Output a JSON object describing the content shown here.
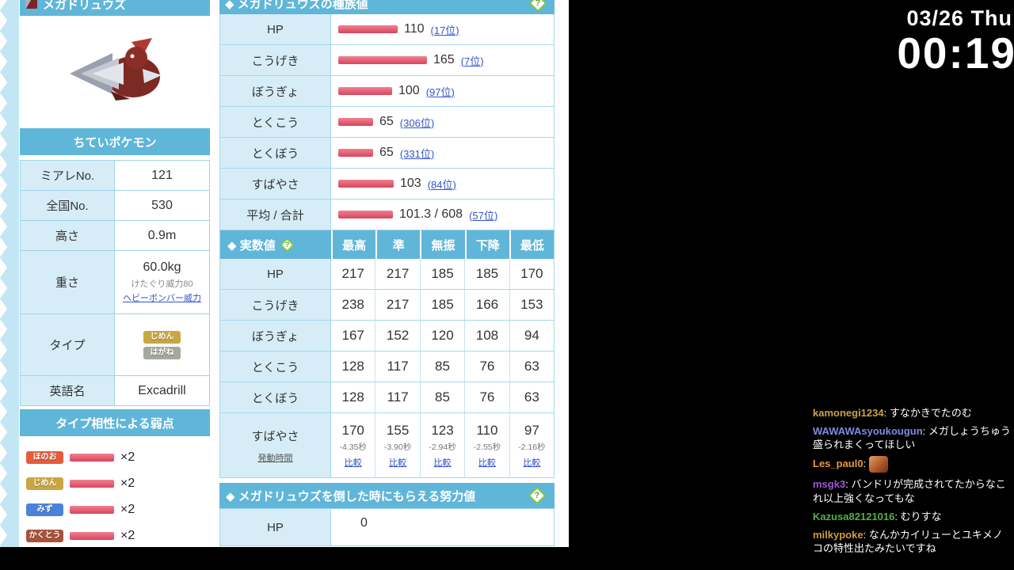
{
  "left": {
    "name": "メガドリュウズ",
    "category": "ちていポケモン",
    "info": [
      {
        "label": "ミアレNo.",
        "value": "121"
      },
      {
        "label": "全国No.",
        "value": "530"
      },
      {
        "label": "高さ",
        "value": "0.9m"
      },
      {
        "label": "重さ",
        "value": "60.0kg",
        "note": "けたぐり威力80",
        "note_link": "ヘビーボンバー威力"
      },
      {
        "label": "タイプ",
        "badges": [
          {
            "label": "じめん",
            "color": "#c9a641"
          },
          {
            "label": "はがね",
            "color": "#a3a99c"
          }
        ]
      },
      {
        "label": "英語名",
        "value": "Excadrill"
      }
    ],
    "weakness_title": "タイプ相性による弱点",
    "weaknesses": [
      {
        "type": "ほのお",
        "color": "#e45c3a",
        "mult": "×2"
      },
      {
        "type": "じめん",
        "color": "#c9a641",
        "mult": "×2"
      },
      {
        "type": "みず",
        "color": "#4a82d9",
        "mult": "×2"
      },
      {
        "type": "かくとう",
        "color": "#a8523a",
        "mult": "×2"
      }
    ]
  },
  "stats": {
    "title": "◆ メガドリュウズの種族値",
    "rows": [
      {
        "label": "HP",
        "value": "110",
        "rank": "(17位)",
        "bar": 110
      },
      {
        "label": "こうげき",
        "value": "165",
        "rank": "(7位)",
        "bar": 165
      },
      {
        "label": "ぼうぎょ",
        "value": "100",
        "rank": "(97位)",
        "bar": 100
      },
      {
        "label": "とくこう",
        "value": "65",
        "rank": "(306位)",
        "bar": 65
      },
      {
        "label": "とくぼう",
        "value": "65",
        "rank": "(331位)",
        "bar": 65
      },
      {
        "label": "すばやさ",
        "value": "103",
        "rank": "(84位)",
        "bar": 103
      },
      {
        "label": "平均 / 合計",
        "value": "101.3 / 608",
        "rank": "(57位)",
        "bar": 101.3
      }
    ]
  },
  "actual": {
    "title": "◆ 実数値",
    "columns": [
      "最高",
      "準",
      "無振",
      "下降",
      "最低"
    ],
    "rows": [
      {
        "label": "HP",
        "v": [
          "217",
          "217",
          "185",
          "185",
          "170"
        ]
      },
      {
        "label": "こうげき",
        "v": [
          "238",
          "217",
          "185",
          "166",
          "153"
        ]
      },
      {
        "label": "ぼうぎょ",
        "v": [
          "167",
          "152",
          "120",
          "108",
          "94"
        ]
      },
      {
        "label": "とくこう",
        "v": [
          "128",
          "117",
          "85",
          "76",
          "63"
        ]
      },
      {
        "label": "とくぼう",
        "v": [
          "128",
          "117",
          "85",
          "76",
          "63"
        ]
      }
    ],
    "speed": {
      "label": "すばやさ",
      "sublabel": "発動時間",
      "v": [
        "170",
        "155",
        "123",
        "110",
        "97"
      ],
      "sec": [
        "-4.35秒",
        "-3.90秒",
        "-2.94秒",
        "-2.55秒",
        "-2.16秒"
      ],
      "compare": "比較"
    }
  },
  "effort": {
    "title": "◆ メガドリュウズを倒した時にもらえる努力値",
    "rows": [
      {
        "label": "HP",
        "value": "0"
      }
    ]
  },
  "icons": {
    "help": "?"
  },
  "overlay": {
    "date": "03/26 Thu",
    "time": "00:19",
    "colon": ":",
    "chat": [
      {
        "user": "kamonegi1234",
        "color": "#c8a14b",
        "message": "すなかきでたのむ"
      },
      {
        "user": "WAWAWAsyoukougun",
        "color": "#7d8ce0",
        "message": "メガしょうちゅう盛られまくってほしい"
      },
      {
        "user": "Les_paul0",
        "color": "#e8963c",
        "message": ""
      },
      {
        "user": "msgk3",
        "color": "#9b59d0",
        "message": "バンドリが完成されてたからなこれ以上強くなってもな"
      },
      {
        "user": "Kazusa82121016",
        "color": "#52b043",
        "message": "むりすな"
      },
      {
        "user": "milkypoke",
        "color": "#d29a3a",
        "message": "なんかカイリューとユキメノコの特性出たみたいですね"
      }
    ]
  }
}
